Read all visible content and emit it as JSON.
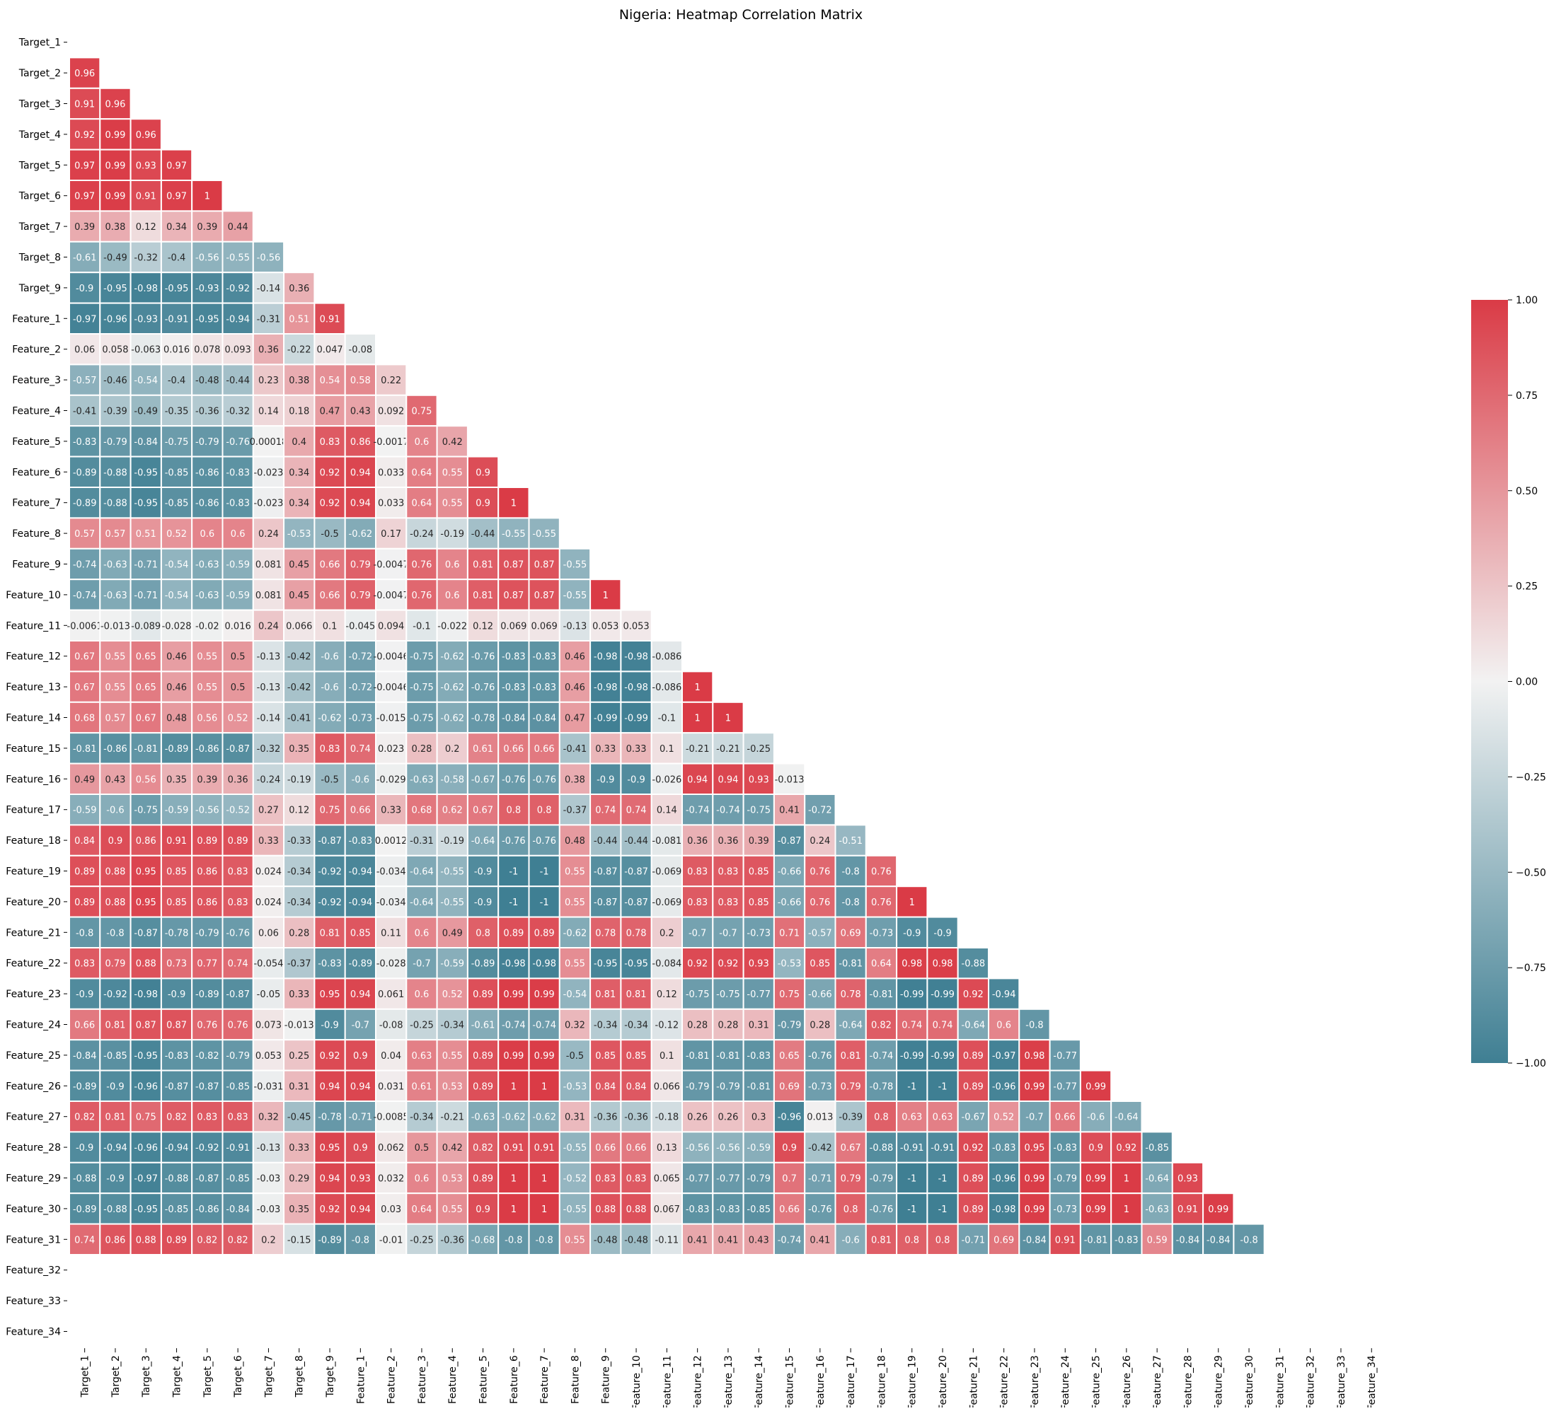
{
  "chart_data": {
    "type": "heatmap",
    "title": "Nigeria: Heatmap Correlation Matrix",
    "colormap": {
      "low": "#3f7f93",
      "mid": "#f2f2f2",
      "high": "#da3b46",
      "range": [
        -1,
        1
      ]
    },
    "colorbar": {
      "ticks": [
        1.0,
        0.75,
        0.5,
        0.25,
        0.0,
        -0.25,
        -0.5,
        -0.75,
        -1.0
      ],
      "tick_labels": [
        "1.00",
        "0.75",
        "0.50",
        "0.25",
        "0.00",
        "−0.25",
        "−0.50",
        "−0.75",
        "−1.00"
      ]
    },
    "mask": "upper-triangle-including-diagonal",
    "labels": [
      "Target_1",
      "Target_2",
      "Target_3",
      "Target_4",
      "Target_5",
      "Target_6",
      "Target_7",
      "Target_8",
      "Target_9",
      "Feature_1",
      "Feature_2",
      "Feature_3",
      "Feature_4",
      "Feature_5",
      "Feature_6",
      "Feature_7",
      "Feature_8",
      "Feature_9",
      "Feature_10",
      "Feature_11",
      "Feature_12",
      "Feature_13",
      "Feature_14",
      "Feature_15",
      "Feature_16",
      "Feature_17",
      "Feature_18",
      "Feature_19",
      "Feature_20",
      "Feature_21",
      "Feature_22",
      "Feature_23",
      "Feature_24",
      "Feature_25",
      "Feature_26",
      "Feature_27",
      "Feature_28",
      "Feature_29",
      "Feature_30",
      "Feature_31",
      "Feature_32",
      "Feature_33",
      "Feature_34"
    ],
    "rows": [
      [],
      [
        "0.96"
      ],
      [
        "0.91",
        "0.96"
      ],
      [
        "0.92",
        "0.99",
        "0.96"
      ],
      [
        "0.97",
        "0.99",
        "0.93",
        "0.97"
      ],
      [
        "0.97",
        "0.99",
        "0.91",
        "0.97",
        "1"
      ],
      [
        "0.39",
        "0.38",
        "0.12",
        "0.34",
        "0.39",
        "0.44"
      ],
      [
        "-0.61",
        "-0.49",
        "-0.32",
        "-0.4",
        "-0.56",
        "-0.55",
        "-0.56"
      ],
      [
        "-0.9",
        "-0.95",
        "-0.98",
        "-0.95",
        "-0.93",
        "-0.92",
        "-0.14",
        "0.36"
      ],
      [
        "-0.97",
        "-0.96",
        "-0.93",
        "-0.91",
        "-0.95",
        "-0.94",
        "-0.31",
        "0.51",
        "0.91"
      ],
      [
        "0.06",
        "0.058",
        "-0.063",
        "0.016",
        "0.078",
        "0.093",
        "0.36",
        "-0.22",
        "0.047",
        "-0.08"
      ],
      [
        "-0.57",
        "-0.46",
        "-0.54",
        "-0.4",
        "-0.48",
        "-0.44",
        "0.23",
        "0.38",
        "0.54",
        "0.58",
        "0.22"
      ],
      [
        "-0.41",
        "-0.39",
        "-0.49",
        "-0.35",
        "-0.36",
        "-0.32",
        "0.14",
        "0.18",
        "0.47",
        "0.43",
        "0.092",
        "0.75"
      ],
      [
        "-0.83",
        "-0.79",
        "-0.84",
        "-0.75",
        "-0.79",
        "-0.76",
        "0.00018",
        "0.4",
        "0.83",
        "0.86",
        "-0.0017",
        "0.6",
        "0.42"
      ],
      [
        "-0.89",
        "-0.88",
        "-0.95",
        "-0.85",
        "-0.86",
        "-0.83",
        "-0.023",
        "0.34",
        "0.92",
        "0.94",
        "0.033",
        "0.64",
        "0.55",
        "0.9"
      ],
      [
        "-0.89",
        "-0.88",
        "-0.95",
        "-0.85",
        "-0.86",
        "-0.83",
        "-0.023",
        "0.34",
        "0.92",
        "0.94",
        "0.033",
        "0.64",
        "0.55",
        "0.9",
        "1"
      ],
      [
        "0.57",
        "0.57",
        "0.51",
        "0.52",
        "0.6",
        "0.6",
        "0.24",
        "-0.53",
        "-0.5",
        "-0.62",
        "0.17",
        "-0.24",
        "-0.19",
        "-0.44",
        "-0.55",
        "-0.55"
      ],
      [
        "-0.74",
        "-0.63",
        "-0.71",
        "-0.54",
        "-0.63",
        "-0.59",
        "0.081",
        "0.45",
        "0.66",
        "0.79",
        "-0.0047",
        "0.76",
        "0.6",
        "0.81",
        "0.87",
        "0.87",
        "-0.55"
      ],
      [
        "-0.74",
        "-0.63",
        "-0.71",
        "-0.54",
        "-0.63",
        "-0.59",
        "0.081",
        "0.45",
        "0.66",
        "0.79",
        "-0.0047",
        "0.76",
        "0.6",
        "0.81",
        "0.87",
        "0.87",
        "-0.55",
        "1"
      ],
      [
        "-0.0061",
        "-0.013",
        "-0.089",
        "-0.028",
        "-0.02",
        "0.016",
        "0.24",
        "0.066",
        "0.1",
        "-0.045",
        "0.094",
        "-0.1",
        "-0.022",
        "0.12",
        "0.069",
        "0.069",
        "-0.13",
        "0.053",
        "0.053"
      ],
      [
        "0.67",
        "0.55",
        "0.65",
        "0.46",
        "0.55",
        "0.5",
        "-0.13",
        "-0.42",
        "-0.6",
        "-0.72",
        "-0.0046",
        "-0.75",
        "-0.62",
        "-0.76",
        "-0.83",
        "-0.83",
        "0.46",
        "-0.98",
        "-0.98",
        "-0.086"
      ],
      [
        "0.67",
        "0.55",
        "0.65",
        "0.46",
        "0.55",
        "0.5",
        "-0.13",
        "-0.42",
        "-0.6",
        "-0.72",
        "-0.0046",
        "-0.75",
        "-0.62",
        "-0.76",
        "-0.83",
        "-0.83",
        "0.46",
        "-0.98",
        "-0.98",
        "-0.086",
        "1"
      ],
      [
        "0.68",
        "0.57",
        "0.67",
        "0.48",
        "0.56",
        "0.52",
        "-0.14",
        "-0.41",
        "-0.62",
        "-0.73",
        "-0.015",
        "-0.75",
        "-0.62",
        "-0.78",
        "-0.84",
        "-0.84",
        "0.47",
        "-0.99",
        "-0.99",
        "-0.1",
        "1",
        "1"
      ],
      [
        "-0.81",
        "-0.86",
        "-0.81",
        "-0.89",
        "-0.86",
        "-0.87",
        "-0.32",
        "0.35",
        "0.83",
        "0.74",
        "0.023",
        "0.28",
        "0.2",
        "0.61",
        "0.66",
        "0.66",
        "-0.41",
        "0.33",
        "0.33",
        "0.1",
        "-0.21",
        "-0.21",
        "-0.25"
      ],
      [
        "0.49",
        "0.43",
        "0.56",
        "0.35",
        "0.39",
        "0.36",
        "-0.24",
        "-0.19",
        "-0.5",
        "-0.6",
        "-0.029",
        "-0.63",
        "-0.58",
        "-0.67",
        "-0.76",
        "-0.76",
        "0.38",
        "-0.9",
        "-0.9",
        "-0.026",
        "0.94",
        "0.94",
        "0.93",
        "-0.013"
      ],
      [
        "-0.59",
        "-0.6",
        "-0.75",
        "-0.59",
        "-0.56",
        "-0.52",
        "0.27",
        "0.12",
        "0.75",
        "0.66",
        "0.33",
        "0.68",
        "0.62",
        "0.67",
        "0.8",
        "0.8",
        "-0.37",
        "0.74",
        "0.74",
        "0.14",
        "-0.74",
        "-0.74",
        "-0.75",
        "0.41",
        "-0.72"
      ],
      [
        "0.84",
        "0.9",
        "0.86",
        "0.91",
        "0.89",
        "0.89",
        "0.33",
        "-0.33",
        "-0.87",
        "-0.83",
        "0.0012",
        "-0.31",
        "-0.19",
        "-0.64",
        "-0.76",
        "-0.76",
        "0.48",
        "-0.44",
        "-0.44",
        "-0.081",
        "0.36",
        "0.36",
        "0.39",
        "-0.87",
        "0.24",
        "-0.51"
      ],
      [
        "0.89",
        "0.88",
        "0.95",
        "0.85",
        "0.86",
        "0.83",
        "0.024",
        "-0.34",
        "-0.92",
        "-0.94",
        "-0.034",
        "-0.64",
        "-0.55",
        "-0.9",
        "-1",
        "-1",
        "0.55",
        "-0.87",
        "-0.87",
        "-0.069",
        "0.83",
        "0.83",
        "0.85",
        "-0.66",
        "0.76",
        "-0.8",
        "0.76"
      ],
      [
        "0.89",
        "0.88",
        "0.95",
        "0.85",
        "0.86",
        "0.83",
        "0.024",
        "-0.34",
        "-0.92",
        "-0.94",
        "-0.034",
        "-0.64",
        "-0.55",
        "-0.9",
        "-1",
        "-1",
        "0.55",
        "-0.87",
        "-0.87",
        "-0.069",
        "0.83",
        "0.83",
        "0.85",
        "-0.66",
        "0.76",
        "-0.8",
        "0.76",
        "1"
      ],
      [
        "-0.8",
        "-0.8",
        "-0.87",
        "-0.78",
        "-0.79",
        "-0.76",
        "0.06",
        "0.28",
        "0.81",
        "0.85",
        "0.11",
        "0.6",
        "0.49",
        "0.8",
        "0.89",
        "0.89",
        "-0.62",
        "0.78",
        "0.78",
        "0.2",
        "-0.7",
        "-0.7",
        "-0.73",
        "0.71",
        "-0.57",
        "0.69",
        "-0.73",
        "-0.9",
        "-0.9"
      ],
      [
        "0.83",
        "0.79",
        "0.88",
        "0.73",
        "0.77",
        "0.74",
        "-0.054",
        "-0.37",
        "-0.83",
        "-0.89",
        "-0.028",
        "-0.7",
        "-0.59",
        "-0.89",
        "-0.98",
        "-0.98",
        "0.55",
        "-0.95",
        "-0.95",
        "-0.084",
        "0.92",
        "0.92",
        "0.93",
        "-0.53",
        "0.85",
        "-0.81",
        "0.64",
        "0.98",
        "0.98",
        "-0.88"
      ],
      [
        "-0.9",
        "-0.92",
        "-0.98",
        "-0.9",
        "-0.89",
        "-0.87",
        "-0.05",
        "0.33",
        "0.95",
        "0.94",
        "0.061",
        "0.6",
        "0.52",
        "0.89",
        "0.99",
        "0.99",
        "-0.54",
        "0.81",
        "0.81",
        "0.12",
        "-0.75",
        "-0.75",
        "-0.77",
        "0.75",
        "-0.66",
        "0.78",
        "-0.81",
        "-0.99",
        "-0.99",
        "0.92",
        "-0.94"
      ],
      [
        "0.66",
        "0.81",
        "0.87",
        "0.87",
        "0.76",
        "0.76",
        "0.073",
        "-0.013",
        "-0.9",
        "-0.7",
        "-0.08",
        "-0.25",
        "-0.34",
        "-0.61",
        "-0.74",
        "-0.74",
        "0.32",
        "-0.34",
        "-0.34",
        "-0.12",
        "0.28",
        "0.28",
        "0.31",
        "-0.79",
        "0.28",
        "-0.64",
        "0.82",
        "0.74",
        "0.74",
        "-0.64",
        "0.6",
        "-0.8"
      ],
      [
        "-0.84",
        "-0.85",
        "-0.95",
        "-0.83",
        "-0.82",
        "-0.79",
        "0.053",
        "0.25",
        "0.92",
        "0.9",
        "0.04",
        "0.63",
        "0.55",
        "0.89",
        "0.99",
        "0.99",
        "-0.5",
        "0.85",
        "0.85",
        "0.1",
        "-0.81",
        "-0.81",
        "-0.83",
        "0.65",
        "-0.76",
        "0.81",
        "-0.74",
        "-0.99",
        "-0.99",
        "0.89",
        "-0.97",
        "0.98",
        "-0.77"
      ],
      [
        "-0.89",
        "-0.9",
        "-0.96",
        "-0.87",
        "-0.87",
        "-0.85",
        "-0.031",
        "0.31",
        "0.94",
        "0.94",
        "0.031",
        "0.61",
        "0.53",
        "0.89",
        "1",
        "1",
        "-0.53",
        "0.84",
        "0.84",
        "0.066",
        "-0.79",
        "-0.79",
        "-0.81",
        "0.69",
        "-0.73",
        "0.79",
        "-0.78",
        "-1",
        "-1",
        "0.89",
        "-0.96",
        "0.99",
        "-0.77",
        "0.99"
      ],
      [
        "0.82",
        "0.81",
        "0.75",
        "0.82",
        "0.83",
        "0.83",
        "0.32",
        "-0.45",
        "-0.78",
        "-0.71",
        "-0.0085",
        "-0.34",
        "-0.21",
        "-0.63",
        "-0.62",
        "-0.62",
        "0.31",
        "-0.36",
        "-0.36",
        "-0.18",
        "0.26",
        "0.26",
        "0.3",
        "-0.96",
        "0.013",
        "-0.39",
        "0.8",
        "0.63",
        "0.63",
        "-0.67",
        "0.52",
        "-0.7",
        "0.66",
        "-0.6",
        "-0.64"
      ],
      [
        "-0.9",
        "-0.94",
        "-0.96",
        "-0.94",
        "-0.92",
        "-0.91",
        "-0.13",
        "0.33",
        "0.95",
        "0.9",
        "0.062",
        "0.5",
        "0.42",
        "0.82",
        "0.91",
        "0.91",
        "-0.55",
        "0.66",
        "0.66",
        "0.13",
        "-0.56",
        "-0.56",
        "-0.59",
        "0.9",
        "-0.42",
        "0.67",
        "-0.88",
        "-0.91",
        "-0.91",
        "0.92",
        "-0.83",
        "0.95",
        "-0.83",
        "0.9",
        "0.92",
        "-0.85"
      ],
      [
        "-0.88",
        "-0.9",
        "-0.97",
        "-0.88",
        "-0.87",
        "-0.85",
        "-0.03",
        "0.29",
        "0.94",
        "0.93",
        "0.032",
        "0.6",
        "0.53",
        "0.89",
        "1",
        "1",
        "-0.52",
        "0.83",
        "0.83",
        "0.065",
        "-0.77",
        "-0.77",
        "-0.79",
        "0.7",
        "-0.71",
        "0.79",
        "-0.79",
        "-1",
        "-1",
        "0.89",
        "-0.96",
        "0.99",
        "-0.79",
        "0.99",
        "1",
        "-0.64",
        "0.93"
      ],
      [
        "-0.89",
        "-0.88",
        "-0.95",
        "-0.85",
        "-0.86",
        "-0.84",
        "-0.03",
        "0.35",
        "0.92",
        "0.94",
        "0.03",
        "0.64",
        "0.55",
        "0.9",
        "1",
        "1",
        "-0.55",
        "0.88",
        "0.88",
        "0.067",
        "-0.83",
        "-0.83",
        "-0.85",
        "0.66",
        "-0.76",
        "0.8",
        "-0.76",
        "-1",
        "-1",
        "0.89",
        "-0.98",
        "0.99",
        "-0.73",
        "0.99",
        "1",
        "-0.63",
        "0.91",
        "0.99"
      ],
      [
        "0.74",
        "0.86",
        "0.88",
        "0.89",
        "0.82",
        "0.82",
        "0.2",
        "-0.15",
        "-0.89",
        "-0.8",
        "-0.01",
        "-0.25",
        "-0.36",
        "-0.68",
        "-0.8",
        "-0.8",
        "0.55",
        "-0.48",
        "-0.48",
        "-0.11",
        "0.41",
        "0.41",
        "0.43",
        "-0.74",
        "0.41",
        "-0.6",
        "0.81",
        "0.8",
        "0.8",
        "-0.71",
        "0.69",
        "-0.84",
        "0.91",
        "-0.81",
        "-0.83",
        "0.59",
        "-0.84",
        "-0.84",
        "-0.8"
      ],
      [],
      [],
      []
    ]
  }
}
